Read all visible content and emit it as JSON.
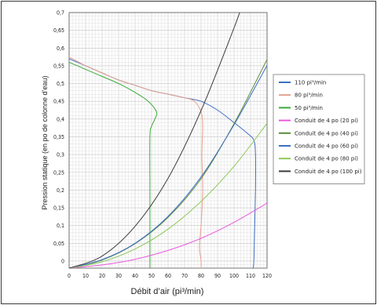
{
  "chart_data": {
    "type": "line",
    "title": "",
    "xlabel": "Débit d’air (pi³/min)",
    "ylabel": "Pression statique (en po de colonne d’eau)",
    "xlim": [
      0,
      120
    ],
    "ylim": [
      -0.02,
      0.7
    ],
    "x_ticks": [
      "0",
      "10",
      "20",
      "30",
      "40",
      "50",
      "60",
      "70",
      "80",
      "90",
      "100",
      "110",
      "120"
    ],
    "y_ticks": [
      "0",
      "0,05",
      "0,1",
      "0,15",
      "0,2",
      "0,25",
      "0,3",
      "0,35",
      "0,4",
      "0,45",
      "0,5",
      "0,55",
      "0,6",
      "0,65",
      "0,7"
    ],
    "grid": true,
    "legend_position": "right",
    "series": [
      {
        "name": "110 pi³/min",
        "color": "#3f6fc2",
        "points": [
          [
            0,
            0.57
          ],
          [
            10,
            0.55
          ],
          [
            20,
            0.53
          ],
          [
            30,
            0.51
          ],
          [
            40,
            0.495
          ],
          [
            50,
            0.48
          ],
          [
            60,
            0.47
          ],
          [
            70,
            0.46
          ],
          [
            80,
            0.45
          ],
          [
            90,
            0.425
          ],
          [
            100,
            0.39
          ],
          [
            108,
            0.36
          ],
          [
            112,
            0.34
          ],
          [
            113,
            0.3
          ],
          [
            113,
            0.2
          ],
          [
            112.5,
            0.1
          ],
          [
            112,
            0
          ],
          [
            111.5,
            -0.02
          ]
        ]
      },
      {
        "name": "80 pi³/min",
        "color": "#e6a08c",
        "points": [
          [
            0,
            0.575
          ],
          [
            10,
            0.55
          ],
          [
            20,
            0.53
          ],
          [
            30,
            0.51
          ],
          [
            40,
            0.495
          ],
          [
            50,
            0.48
          ],
          [
            60,
            0.47
          ],
          [
            70,
            0.46
          ],
          [
            76,
            0.45
          ],
          [
            80,
            0.42
          ],
          [
            81,
            0.38
          ],
          [
            80.5,
            0.3
          ],
          [
            81,
            0.2
          ],
          [
            80,
            0.1
          ],
          [
            79,
            0.04
          ],
          [
            80,
            0
          ],
          [
            80,
            -0.02
          ]
        ]
      },
      {
        "name": "50 pi³/min",
        "color": "#3aaa3a",
        "points": [
          [
            0,
            0.56
          ],
          [
            10,
            0.54
          ],
          [
            20,
            0.52
          ],
          [
            30,
            0.5
          ],
          [
            40,
            0.475
          ],
          [
            48,
            0.45
          ],
          [
            53,
            0.42
          ],
          [
            52,
            0.4
          ],
          [
            50,
            0.38
          ],
          [
            49,
            0.35
          ],
          [
            49,
            0.2
          ],
          [
            49,
            0.1
          ],
          [
            49,
            0
          ],
          [
            49,
            -0.02
          ]
        ]
      },
      {
        "name": "Conduit de 4 po (20 pi)",
        "color": "#e85ae0",
        "points": [
          [
            0,
            -0.02
          ],
          [
            20,
            -0.011
          ],
          [
            40,
            0.005
          ],
          [
            60,
            0.03
          ],
          [
            80,
            0.064
          ],
          [
            100,
            0.109
          ],
          [
            120,
            0.163
          ]
        ]
      },
      {
        "name": "Conduit de 4 po (40 pi)",
        "color": "#5a8a3a",
        "points": [
          [
            0,
            -0.02
          ],
          [
            20,
            0.003
          ],
          [
            40,
            0.049
          ],
          [
            60,
            0.123
          ],
          [
            80,
            0.232
          ],
          [
            100,
            0.387
          ],
          [
            120,
            0.568
          ]
        ]
      },
      {
        "name": "Conduit de 4 po (60 pi)",
        "color": "#3f6fc2",
        "points": [
          [
            0,
            -0.02
          ],
          [
            20,
            0.004
          ],
          [
            40,
            0.05
          ],
          [
            60,
            0.126
          ],
          [
            80,
            0.237
          ],
          [
            100,
            0.384
          ],
          [
            120,
            0.551
          ]
        ]
      },
      {
        "name": "Conduit de 4 po (80 pi)",
        "color": "#8cc85a",
        "points": [
          [
            0,
            -0.02
          ],
          [
            20,
            -0.002
          ],
          [
            40,
            0.034
          ],
          [
            60,
            0.09
          ],
          [
            80,
            0.168
          ],
          [
            100,
            0.267
          ],
          [
            120,
            0.388
          ]
        ]
      },
      {
        "name": "Conduit de 4 po (100 pi)",
        "color": "#3c3c3c",
        "points": [
          [
            0,
            -0.02
          ],
          [
            20,
            0.014
          ],
          [
            40,
            0.098
          ],
          [
            60,
            0.233
          ],
          [
            80,
            0.424
          ],
          [
            100,
            0.657
          ],
          [
            104,
            0.71
          ]
        ]
      }
    ]
  }
}
